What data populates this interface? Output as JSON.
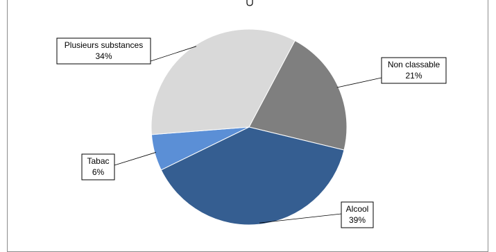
{
  "chart_data": {
    "type": "pie",
    "title": "",
    "start_angle_deg": -62,
    "direction": "clockwise",
    "slices": [
      {
        "name": "Non classable",
        "value": 21,
        "value_label": "21%",
        "color": "#7f7f7f"
      },
      {
        "name": "Alcool",
        "value": 39,
        "value_label": "39%",
        "color": "#355e91"
      },
      {
        "name": "Tabac",
        "value": 6,
        "value_label": "6%",
        "color": "#5b8fd6"
      },
      {
        "name": "Plusieurs substances",
        "value": 34,
        "value_label": "34%",
        "color": "#d9d9d9"
      }
    ]
  }
}
